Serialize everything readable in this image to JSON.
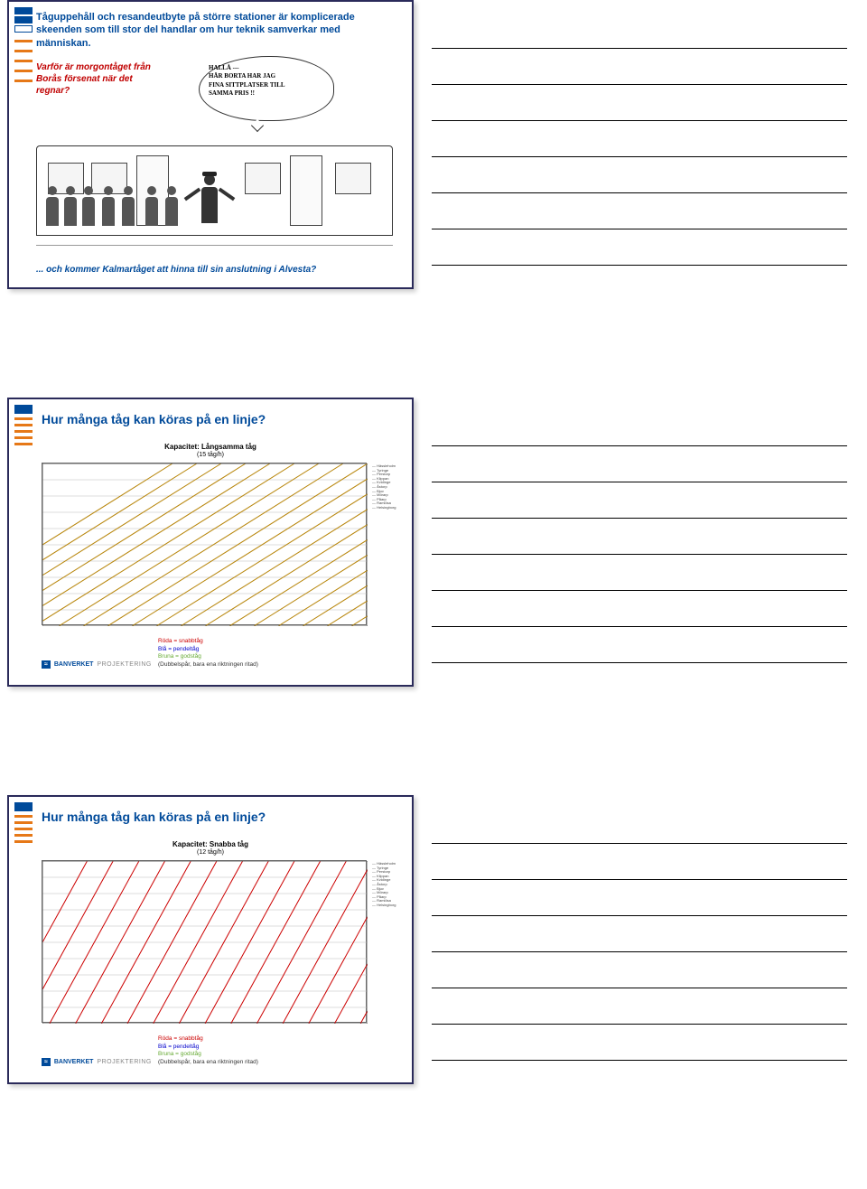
{
  "slide1": {
    "title": "Tåguppehåll och resandeutbyte på större stationer är komplicerade skeenden som till stor del handlar om hur teknik samverkar med människan.",
    "red_text": "Varför är morgontåget från Borås försenat när det regnar?",
    "bottom_text": "... och kommer Kalmartåget att hinna till sin anslutning i Alvesta?",
    "bubble_l1": "HALLÅ ---",
    "bubble_l2": "HÄR BORTA HAR JAG",
    "bubble_l3": "FINA SITTPLATSER TILL",
    "bubble_l4": "SAMMA PRIS !!"
  },
  "slide2": {
    "title": "Hur många tåg kan köras på en linje?",
    "chart_title": "Kapacitet: Långsamma tåg",
    "chart_sub": "(15 tåg/h)",
    "legend_red": "Röda = snabbtåg",
    "legend_blue": "Blå = pendeltåg",
    "legend_brown": "Bruna = godståg",
    "legend_note": "(Dubbelspår, bara ena riktningen ritad)"
  },
  "slide3": {
    "title": "Hur många tåg kan köras på en linje?",
    "chart_title": "Kapacitet: Snabba tåg",
    "chart_sub": "(12 tåg/h)",
    "legend_red": "Röda = snabbtåg",
    "legend_blue": "Blå = pendeltåg",
    "legend_brown": "Bruna = godståg",
    "legend_note": "(Dubbelspår, bara ena riktningen ritad)"
  },
  "footer": {
    "brand": "BANVERKET",
    "sub": "PROJEKTERING"
  },
  "chart2": {
    "type": "line-schedule",
    "line_color": "#b8860b",
    "line_count": 24,
    "slope": 1.6,
    "grid_rows": 10
  },
  "chart3": {
    "type": "line-schedule",
    "line_color": "#cc0000",
    "line_count": 16,
    "slope": 0.55,
    "grid_rows": 10
  },
  "stations": [
    "Hässleholm",
    "Tyringe",
    "Perstorp",
    "Klippan",
    "Kvidinge",
    "Åstorp",
    "Bjuv",
    "Mörarp",
    "Påarp",
    "Ramlösa",
    "Helsingborg"
  ],
  "colors": {
    "blue": "#004a9a",
    "red": "#c00000",
    "orange": "#e67817",
    "chart_border": "#666666",
    "grid": "#bbbbbb"
  }
}
